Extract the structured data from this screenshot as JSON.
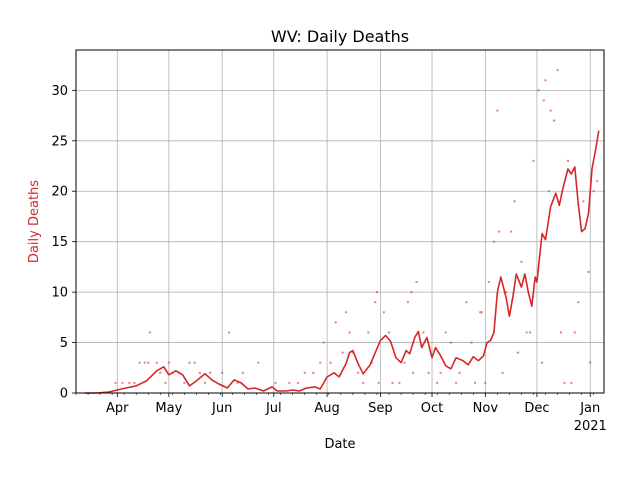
{
  "chart_data": {
    "type": "line",
    "title": "WV: Daily Deaths",
    "xlabel": "Date",
    "ylabel": "Daily Deaths",
    "xlim": [
      "2020-03-08",
      "2021-01-09"
    ],
    "ylim": [
      0,
      34
    ],
    "grid": true,
    "legend": "none",
    "colors": {
      "line": "#d62728",
      "points": "#d62728",
      "ylabel": "#d62728",
      "grid": "#b0b0b0",
      "text": "#000000"
    },
    "x_ticks": [
      {
        "date": "2020-04-01",
        "label": "Apr"
      },
      {
        "date": "2020-05-01",
        "label": "May"
      },
      {
        "date": "2020-06-01",
        "label": "Jun"
      },
      {
        "date": "2020-07-01",
        "label": "Jul"
      },
      {
        "date": "2020-08-01",
        "label": "Aug"
      },
      {
        "date": "2020-09-01",
        "label": "Sep"
      },
      {
        "date": "2020-10-01",
        "label": "Oct"
      },
      {
        "date": "2020-11-01",
        "label": "Nov"
      },
      {
        "date": "2020-12-01",
        "label": "Dec"
      },
      {
        "date": "2021-01-01",
        "label": "Jan",
        "sublabel": "2021"
      }
    ],
    "y_ticks": [
      0,
      5,
      10,
      15,
      20,
      25,
      30
    ],
    "series": [
      {
        "kind": "line",
        "points": [
          [
            "2020-03-13",
            0
          ],
          [
            "2020-03-20",
            0
          ],
          [
            "2020-03-27",
            0.1
          ],
          [
            "2020-04-01",
            0.3
          ],
          [
            "2020-04-06",
            0.5
          ],
          [
            "2020-04-12",
            0.7
          ],
          [
            "2020-04-18",
            1.2
          ],
          [
            "2020-04-24",
            2.2
          ],
          [
            "2020-04-28",
            2.6
          ],
          [
            "2020-05-01",
            1.8
          ],
          [
            "2020-05-05",
            2.2
          ],
          [
            "2020-05-09",
            1.8
          ],
          [
            "2020-05-13",
            0.7
          ],
          [
            "2020-05-17",
            1.2
          ],
          [
            "2020-05-22",
            1.9
          ],
          [
            "2020-05-26",
            1.3
          ],
          [
            "2020-05-30",
            0.9
          ],
          [
            "2020-06-04",
            0.5
          ],
          [
            "2020-06-08",
            1.3
          ],
          [
            "2020-06-12",
            1.0
          ],
          [
            "2020-06-16",
            0.4
          ],
          [
            "2020-06-20",
            0.5
          ],
          [
            "2020-06-25",
            0.2
          ],
          [
            "2020-06-30",
            0.6
          ],
          [
            "2020-07-03",
            0.2
          ],
          [
            "2020-07-08",
            0.2
          ],
          [
            "2020-07-12",
            0.3
          ],
          [
            "2020-07-16",
            0.2
          ],
          [
            "2020-07-20",
            0.5
          ],
          [
            "2020-07-25",
            0.6
          ],
          [
            "2020-07-28",
            0.4
          ],
          [
            "2020-08-01",
            1.6
          ],
          [
            "2020-08-05",
            2.0
          ],
          [
            "2020-08-08",
            1.6
          ],
          [
            "2020-08-12",
            2.9
          ],
          [
            "2020-08-14",
            4.0
          ],
          [
            "2020-08-16",
            4.2
          ],
          [
            "2020-08-19",
            2.9
          ],
          [
            "2020-08-22",
            1.9
          ],
          [
            "2020-08-26",
            2.8
          ],
          [
            "2020-08-29",
            4.0
          ],
          [
            "2020-09-01",
            5.2
          ],
          [
            "2020-09-04",
            5.7
          ],
          [
            "2020-09-07",
            5.1
          ],
          [
            "2020-09-10",
            3.5
          ],
          [
            "2020-09-13",
            3.0
          ],
          [
            "2020-09-16",
            4.2
          ],
          [
            "2020-09-18",
            3.9
          ],
          [
            "2020-09-21",
            5.5
          ],
          [
            "2020-09-23",
            6.1
          ],
          [
            "2020-09-25",
            4.5
          ],
          [
            "2020-09-28",
            5.5
          ],
          [
            "2020-10-01",
            3.5
          ],
          [
            "2020-10-03",
            4.5
          ],
          [
            "2020-10-06",
            3.7
          ],
          [
            "2020-10-09",
            2.7
          ],
          [
            "2020-10-12",
            2.4
          ],
          [
            "2020-10-15",
            3.5
          ],
          [
            "2020-10-19",
            3.2
          ],
          [
            "2020-10-22",
            2.8
          ],
          [
            "2020-10-25",
            3.6
          ],
          [
            "2020-10-28",
            3.2
          ],
          [
            "2020-10-31",
            3.7
          ],
          [
            "2020-11-02",
            5.0
          ],
          [
            "2020-11-04",
            5.2
          ],
          [
            "2020-11-06",
            6.0
          ],
          [
            "2020-11-08",
            10.0
          ],
          [
            "2020-11-10",
            11.5
          ],
          [
            "2020-11-13",
            9.5
          ],
          [
            "2020-11-15",
            7.6
          ],
          [
            "2020-11-17",
            9.5
          ],
          [
            "2020-11-19",
            11.8
          ],
          [
            "2020-11-22",
            10.5
          ],
          [
            "2020-11-24",
            11.8
          ],
          [
            "2020-11-26",
            10.0
          ],
          [
            "2020-11-28",
            8.6
          ],
          [
            "2020-11-30",
            11.5
          ],
          [
            "2020-12-01",
            11.0
          ],
          [
            "2020-12-04",
            15.8
          ],
          [
            "2020-12-06",
            15.2
          ],
          [
            "2020-12-09",
            18.5
          ],
          [
            "2020-12-12",
            19.8
          ],
          [
            "2020-12-14",
            18.6
          ],
          [
            "2020-12-16",
            20.2
          ],
          [
            "2020-12-19",
            22.2
          ],
          [
            "2020-12-21",
            21.7
          ],
          [
            "2020-12-23",
            22.4
          ],
          [
            "2020-12-25",
            18.8
          ],
          [
            "2020-12-27",
            16.0
          ],
          [
            "2020-12-29",
            16.3
          ],
          [
            "2020-12-31",
            17.8
          ],
          [
            "2021-01-02",
            22.2
          ],
          [
            "2021-01-04",
            24.0
          ],
          [
            "2021-01-06",
            26.0
          ]
        ]
      },
      {
        "kind": "scatter",
        "points": [
          [
            "2020-03-31",
            1
          ],
          [
            "2020-04-04",
            1
          ],
          [
            "2020-04-08",
            1
          ],
          [
            "2020-04-11",
            1
          ],
          [
            "2020-04-14",
            3
          ],
          [
            "2020-04-17",
            3
          ],
          [
            "2020-04-19",
            3
          ],
          [
            "2020-04-20",
            6
          ],
          [
            "2020-04-24",
            3
          ],
          [
            "2020-04-26",
            2
          ],
          [
            "2020-04-29",
            1
          ],
          [
            "2020-05-01",
            3
          ],
          [
            "2020-05-03",
            2
          ],
          [
            "2020-05-07",
            2
          ],
          [
            "2020-05-10",
            1
          ],
          [
            "2020-05-13",
            3
          ],
          [
            "2020-05-16",
            3
          ],
          [
            "2020-05-19",
            2
          ],
          [
            "2020-05-22",
            1
          ],
          [
            "2020-05-25",
            2
          ],
          [
            "2020-06-01",
            2
          ],
          [
            "2020-06-05",
            6
          ],
          [
            "2020-06-10",
            1
          ],
          [
            "2020-06-13",
            2
          ],
          [
            "2020-06-22",
            3
          ],
          [
            "2020-07-02",
            1
          ],
          [
            "2020-07-10",
            1
          ],
          [
            "2020-07-15",
            1
          ],
          [
            "2020-07-19",
            2
          ],
          [
            "2020-07-24",
            2
          ],
          [
            "2020-07-28",
            3
          ],
          [
            "2020-07-30",
            5
          ],
          [
            "2020-08-03",
            3
          ],
          [
            "2020-08-06",
            7
          ],
          [
            "2020-08-10",
            4
          ],
          [
            "2020-08-12",
            8
          ],
          [
            "2020-08-14",
            6
          ],
          [
            "2020-08-16",
            4
          ],
          [
            "2020-08-19",
            2
          ],
          [
            "2020-08-22",
            1
          ],
          [
            "2020-08-25",
            6
          ],
          [
            "2020-08-27",
            3
          ],
          [
            "2020-08-29",
            9
          ],
          [
            "2020-08-30",
            10
          ],
          [
            "2020-08-31",
            1
          ],
          [
            "2020-09-03",
            8
          ],
          [
            "2020-09-06",
            6
          ],
          [
            "2020-09-08",
            1
          ],
          [
            "2020-09-12",
            1
          ],
          [
            "2020-09-15",
            3
          ],
          [
            "2020-09-17",
            9
          ],
          [
            "2020-09-19",
            10
          ],
          [
            "2020-09-20",
            2
          ],
          [
            "2020-09-22",
            11
          ],
          [
            "2020-09-26",
            6
          ],
          [
            "2020-09-29",
            2
          ],
          [
            "2020-10-04",
            1
          ],
          [
            "2020-10-06",
            2
          ],
          [
            "2020-10-09",
            6
          ],
          [
            "2020-10-12",
            5
          ],
          [
            "2020-10-15",
            1
          ],
          [
            "2020-10-17",
            2
          ],
          [
            "2020-10-21",
            9
          ],
          [
            "2020-10-24",
            5
          ],
          [
            "2020-10-26",
            1
          ],
          [
            "2020-10-29",
            8
          ],
          [
            "2020-10-30",
            8
          ],
          [
            "2020-11-01",
            1
          ],
          [
            "2020-11-03",
            11
          ],
          [
            "2020-11-06",
            15
          ],
          [
            "2020-11-08",
            28
          ],
          [
            "2020-11-09",
            16
          ],
          [
            "2020-11-11",
            2
          ],
          [
            "2020-11-13",
            10
          ],
          [
            "2020-11-16",
            16
          ],
          [
            "2020-11-18",
            19
          ],
          [
            "2020-11-20",
            4
          ],
          [
            "2020-11-22",
            13
          ],
          [
            "2020-11-25",
            6
          ],
          [
            "2020-11-27",
            6
          ],
          [
            "2020-11-29",
            23
          ],
          [
            "2020-12-02",
            30
          ],
          [
            "2020-12-04",
            3
          ],
          [
            "2020-12-05",
            29
          ],
          [
            "2020-12-06",
            31
          ],
          [
            "2020-12-08",
            20
          ],
          [
            "2020-12-09",
            28
          ],
          [
            "2020-12-11",
            27
          ],
          [
            "2020-12-13",
            32
          ],
          [
            "2020-12-15",
            6
          ],
          [
            "2020-12-17",
            1
          ],
          [
            "2020-12-19",
            23
          ],
          [
            "2020-12-21",
            1
          ],
          [
            "2020-12-23",
            6
          ],
          [
            "2020-12-25",
            9
          ],
          [
            "2020-12-28",
            19
          ],
          [
            "2020-12-31",
            12
          ],
          [
            "2021-01-01",
            3
          ],
          [
            "2021-01-03",
            20
          ],
          [
            "2021-01-05",
            21
          ]
        ]
      }
    ]
  }
}
